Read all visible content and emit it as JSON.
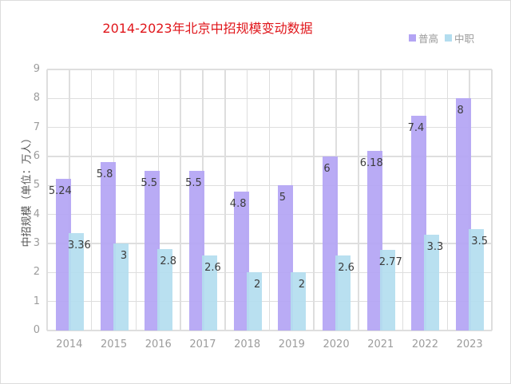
{
  "chart_data": {
    "type": "bar",
    "title": "2014-2023年北京中招规模变动数据",
    "xlabel": "",
    "ylabel": "中招规模（单位：万人）",
    "ylim": [
      0,
      9
    ],
    "yticks": [
      "0",
      "1",
      "2",
      "3",
      "4",
      "5",
      "6",
      "7",
      "8",
      "9"
    ],
    "grid": true,
    "legend_position": "top-right",
    "categories": [
      "2014",
      "2015",
      "2016",
      "2017",
      "2018",
      "2019",
      "2020",
      "2021",
      "2022",
      "2023"
    ],
    "series": [
      {
        "name": "普高",
        "color": "#b3a4f4",
        "values": [
          5.24,
          5.8,
          5.5,
          5.5,
          4.8,
          5,
          6,
          6.18,
          7.4,
          8
        ],
        "labels": [
          "5.24",
          "5.8",
          "5.5",
          "5.5",
          "4.8",
          "5",
          "6",
          "6.18",
          "7.4",
          "8"
        ]
      },
      {
        "name": "中职",
        "color": "#b3ddef",
        "values": [
          3.36,
          3,
          2.8,
          2.6,
          2,
          2,
          2.6,
          2.77,
          3.3,
          3.5
        ],
        "labels": [
          "3.36",
          "3",
          "2.8",
          "2.6",
          "2",
          "2",
          "2.6",
          "2.77",
          "3.3",
          "3.5"
        ]
      }
    ]
  },
  "colors": {
    "title": "#e0161b",
    "grid": "#dedede",
    "tick": "#9c9c9c"
  }
}
